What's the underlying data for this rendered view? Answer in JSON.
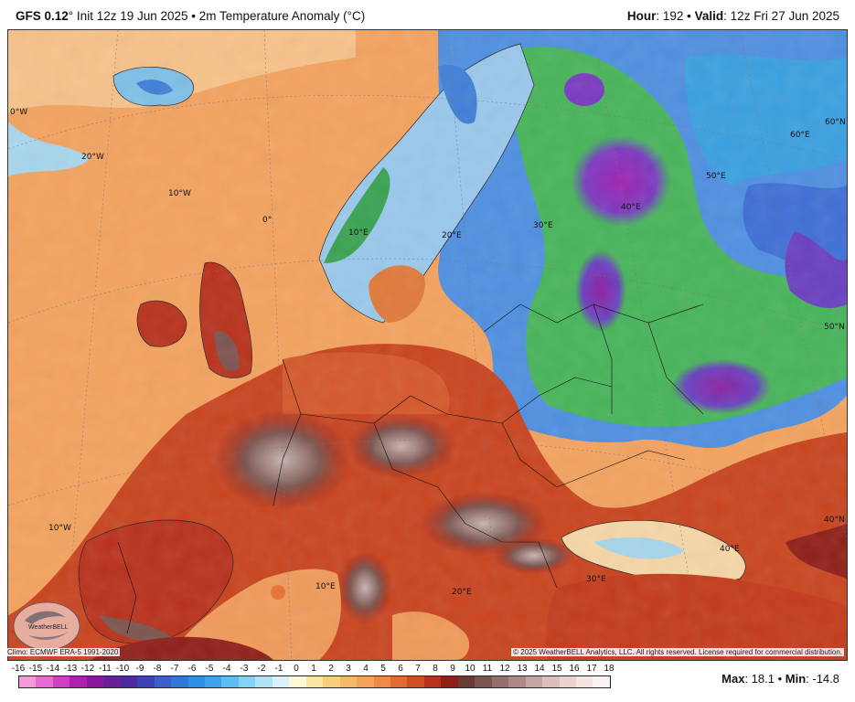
{
  "header": {
    "model": "GFS 0.12",
    "init": "° Init 12z 19 Jun 2025 • 2m Temperature Anomaly (°C)",
    "hour_label": "Hour",
    "hour_value": ": 192 • ",
    "valid_label": "Valid",
    "valid_value": ": 12z Fri 27 Jun 2025"
  },
  "map": {
    "graticule_labels": [
      "0°W",
      "20°W",
      "10°W",
      "0°",
      "10°E",
      "20°E",
      "30°E",
      "40°E",
      "50°E",
      "60°E",
      "60°N",
      "50°N",
      "40°N",
      "40°E",
      "30°E",
      "20°E",
      "10°E",
      "10°W"
    ],
    "logo_text": "WeatherBELL",
    "colors": {
      "ocean_anomaly": "#f3a35f",
      "warm_strong": "#b8311c",
      "warm_extreme": "#6b3a34",
      "cool": "#2d6fd6",
      "cold": "#37b24d",
      "coldest": "#8e2bb5"
    }
  },
  "footer": {
    "climo": "Climo: ECMWF ERA-5 1991-2020",
    "copyright": "© 2025 WeatherBELL Analytics, LLC. All rights reserved. License required for commercial distribution."
  },
  "legend": {
    "labels": [
      "-16",
      "-15",
      "-14",
      "-13",
      "-12",
      "-11",
      "-10",
      "-9",
      "-8",
      "-7",
      "-6",
      "-5",
      "-4",
      "-3",
      "-2",
      "-1",
      "0",
      "1",
      "2",
      "3",
      "4",
      "5",
      "6",
      "7",
      "8",
      "9",
      "10",
      "11",
      "12",
      "13",
      "14",
      "15",
      "16",
      "17",
      "18"
    ],
    "colors": [
      "#f59ad9",
      "#e46ccf",
      "#cf3fbf",
      "#ad1fae",
      "#8a189f",
      "#6a2095",
      "#4b2aa0",
      "#3c44b4",
      "#3d5fcb",
      "#2f78d8",
      "#2f8fe3",
      "#3ba4ea",
      "#5dbdf0",
      "#86d0f4",
      "#b0e1f7",
      "#daf1fb",
      "#fdf7d8",
      "#fbe6a0",
      "#f7cf7c",
      "#f5b96a",
      "#f2a35a",
      "#ec8a46",
      "#e06c33",
      "#d04f24",
      "#b8311c",
      "#8f1f18",
      "#6b3a34",
      "#7c5550",
      "#93706b",
      "#ab8a86",
      "#c4a5a1",
      "#dcbfbc",
      "#ecd3d0",
      "#f4e4e2",
      "#faf2f1"
    ]
  },
  "stats": {
    "max_label": "Max",
    "max_value": ": 18.1 • ",
    "min_label": "Min",
    "min_value": ": -14.8"
  }
}
